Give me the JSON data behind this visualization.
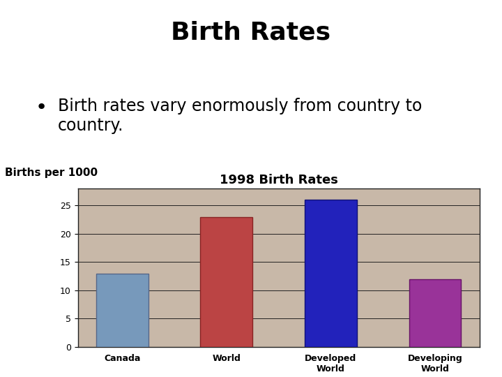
{
  "main_title": "Birth Rates",
  "bullet_text": "Birth rates vary enormously from country to\ncountry.",
  "chart_title": "1998 Birth Rates",
  "ylabel": "Births per 1000",
  "categories": [
    "Canada",
    "World",
    "Developed\nWorld",
    "Developing\nWorld"
  ],
  "values": [
    13,
    23,
    26,
    12
  ],
  "bar_colors": [
    "#7799BB",
    "#BB4444",
    "#2222BB",
    "#993399"
  ],
  "bar_edge_colors": [
    "#556688",
    "#882222",
    "#111177",
    "#661166"
  ],
  "ylim": [
    0,
    28
  ],
  "yticks": [
    0,
    5,
    10,
    15,
    20,
    25
  ],
  "background_color": "#ffffff",
  "chart_bg_color": "#c8b8a8",
  "title_fontsize": 26,
  "bullet_fontsize": 17,
  "chart_title_fontsize": 13,
  "ylabel_fontsize": 11,
  "tick_fontsize": 9
}
